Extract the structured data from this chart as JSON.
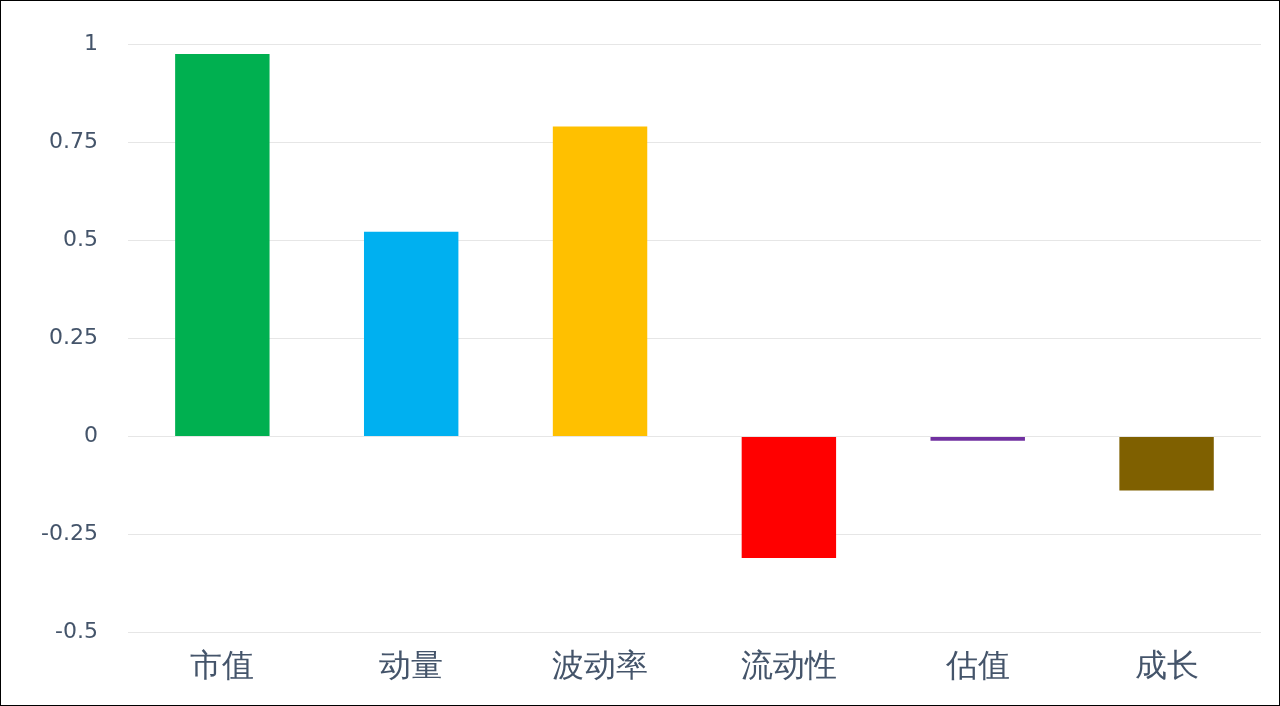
{
  "chart_data": {
    "type": "bar",
    "categories": [
      "市值",
      "动量",
      "波动率",
      "流动性",
      "估值",
      "成长"
    ],
    "values": [
      0.975,
      0.522,
      0.79,
      -0.31,
      -0.011,
      -0.138
    ],
    "colors": [
      "#00b050",
      "#00b0f0",
      "#ffc000",
      "#ff0000",
      "#7030a0",
      "#7f6000"
    ],
    "ylim": [
      -0.5,
      1
    ],
    "yticks": [
      -0.5,
      -0.25,
      0,
      0.25,
      0.5,
      0.75,
      1
    ],
    "grid": "y",
    "legend": false
  }
}
